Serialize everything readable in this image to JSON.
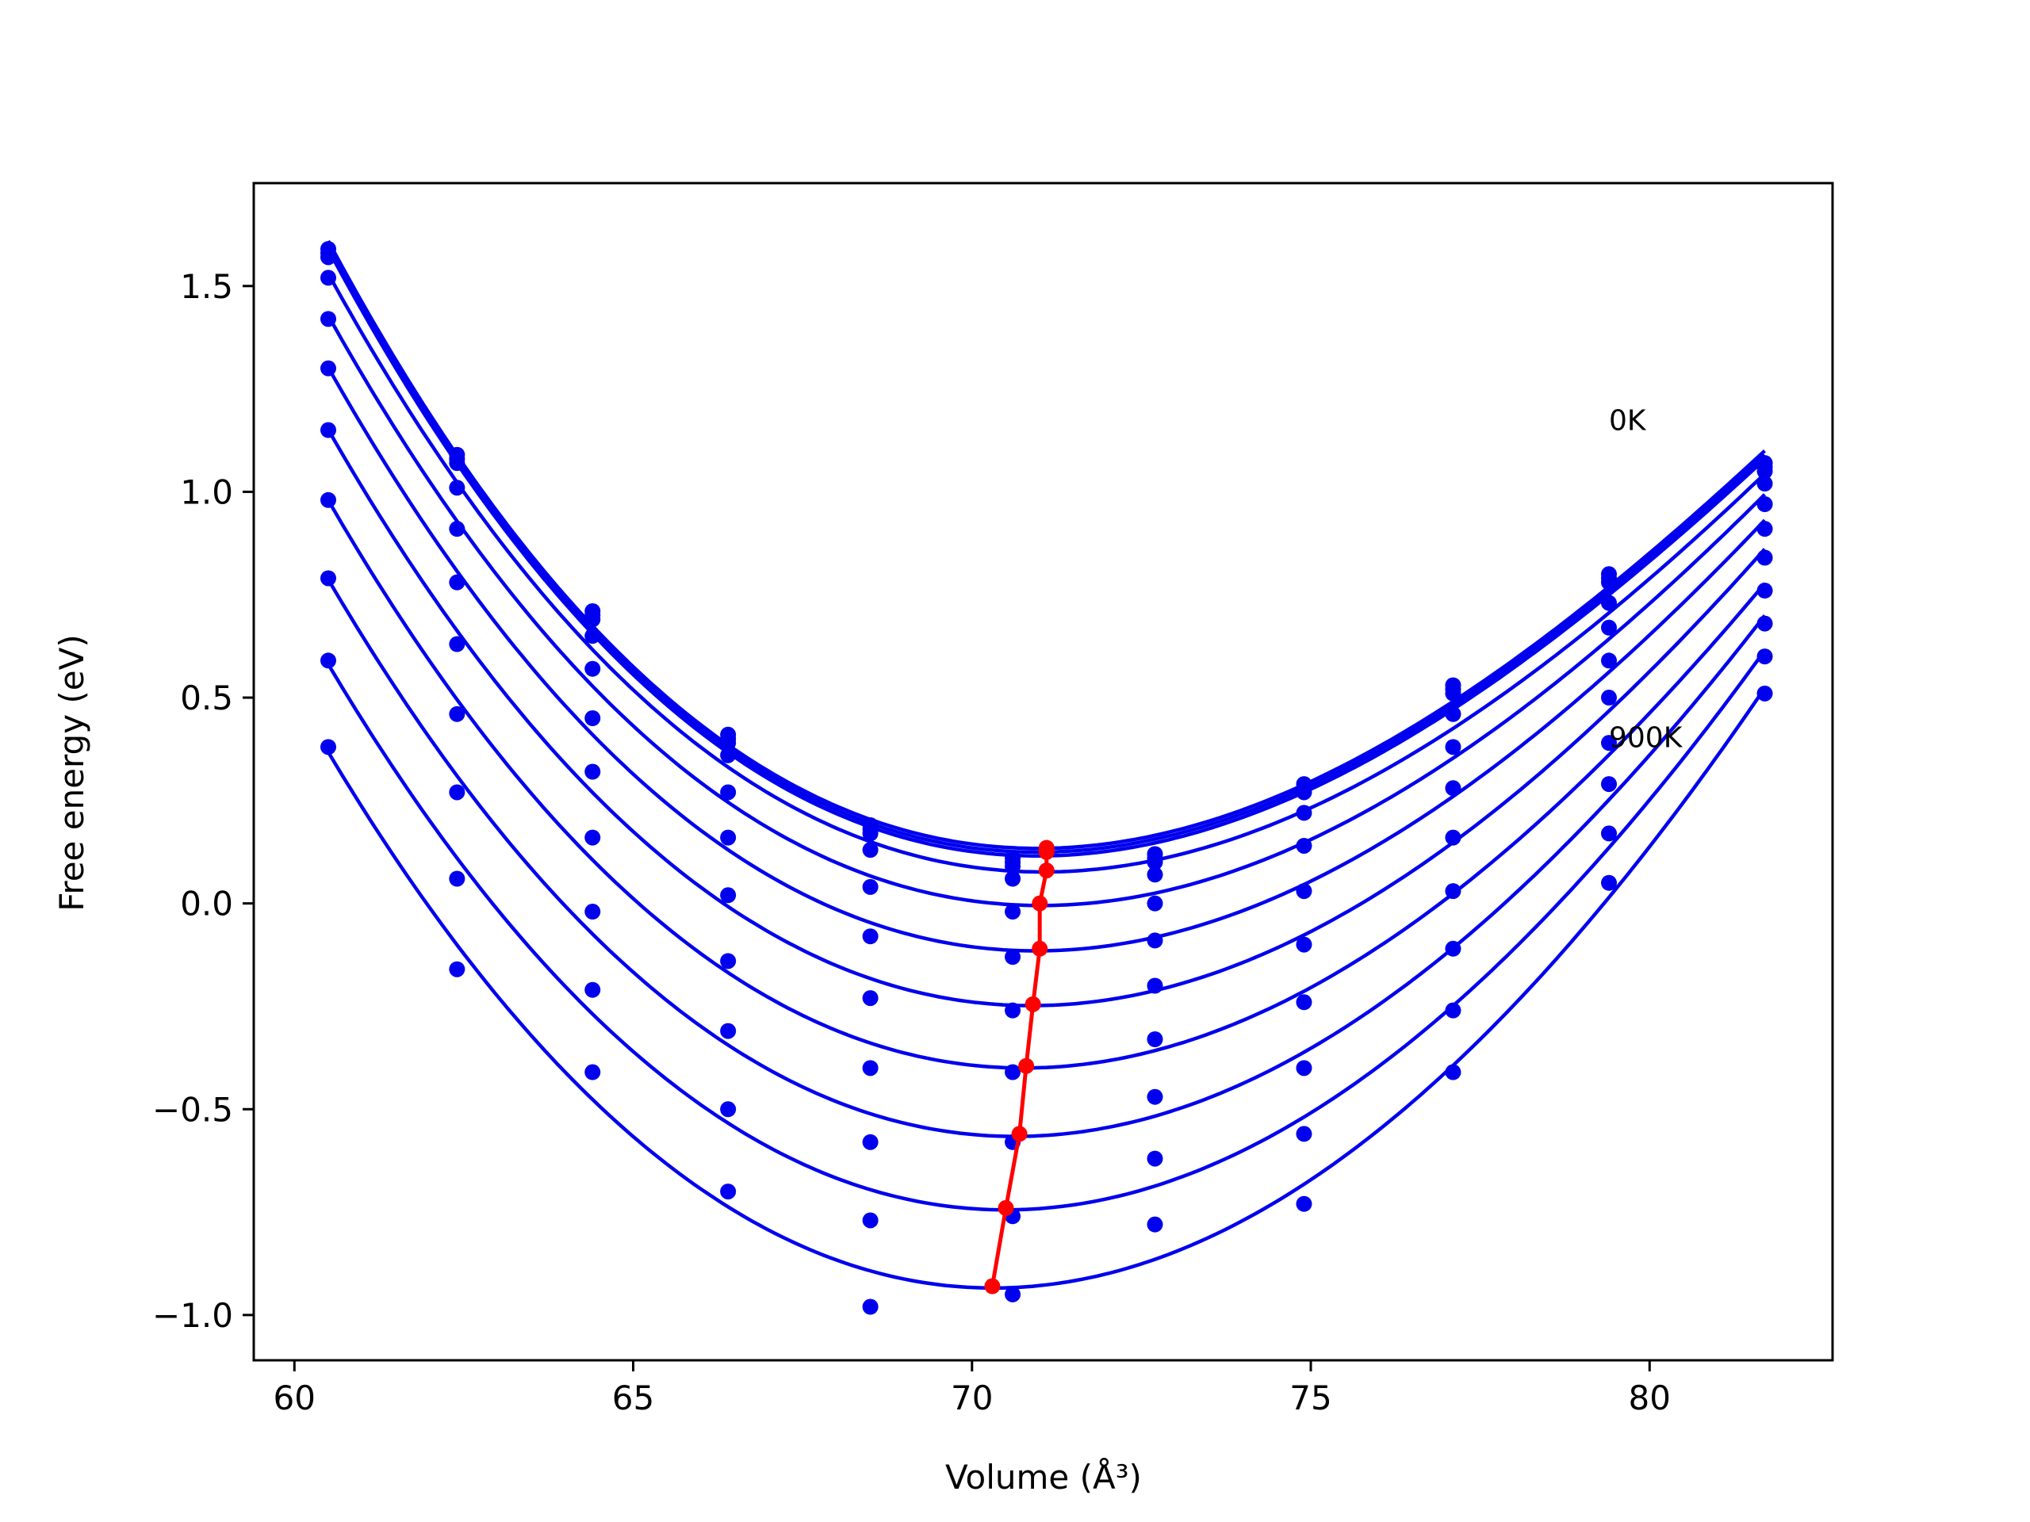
{
  "chart_data": {
    "type": "line",
    "title": "",
    "xlabel": "Volume (Å³)",
    "ylabel": "Free energy (eV)",
    "xlim": [
      59.4,
      82.7
    ],
    "ylim": [
      -1.11,
      1.75
    ],
    "xticks": [
      60,
      65,
      70,
      75,
      80
    ],
    "yticks": [
      -1.0,
      -0.5,
      0.0,
      0.5,
      1.0,
      1.5
    ],
    "xtick_labels": [
      "60",
      "65",
      "70",
      "75",
      "80"
    ],
    "ytick_labels": [
      "−1.0",
      "−0.5",
      "0.0",
      "0.5",
      "1.0",
      "1.5"
    ],
    "grid": false,
    "annotations": [
      {
        "text": "0K",
        "x": 79.4,
        "y": 1.15
      },
      {
        "text": "900K",
        "x": 79.4,
        "y": 0.38
      }
    ],
    "colors": {
      "fit_curves": "#0000ee",
      "data_points": "#0000ee",
      "minimum_line": "#ff0000"
    },
    "x_points": [
      60.5,
      62.4,
      64.4,
      66.4,
      68.5,
      70.6,
      72.7,
      74.9,
      77.1,
      79.4,
      81.7
    ],
    "fit_x_range": [
      60.5,
      81.7
    ],
    "series": [
      {
        "values": [
          1.59,
          1.09,
          0.71,
          0.41,
          0.19,
          0.11,
          0.12,
          0.29,
          0.53,
          0.8,
          1.07
        ],
        "minimum": {
          "x": 71.1,
          "y": 0.135
        }
      },
      {
        "values": [
          1.58,
          1.08,
          0.7,
          0.4,
          0.18,
          0.1,
          0.11,
          0.28,
          0.52,
          0.79,
          1.06
        ],
        "minimum": {
          "x": 71.1,
          "y": 0.13
        }
      },
      {
        "values": [
          1.57,
          1.07,
          0.69,
          0.39,
          0.17,
          0.09,
          0.1,
          0.27,
          0.51,
          0.78,
          1.05
        ],
        "minimum": {
          "x": 71.1,
          "y": 0.125
        }
      },
      {
        "values": [
          1.52,
          1.01,
          0.65,
          0.36,
          0.13,
          0.06,
          0.07,
          0.22,
          0.46,
          0.73,
          1.02
        ],
        "minimum": {
          "x": 71.1,
          "y": 0.08
        }
      },
      {
        "values": [
          1.42,
          0.91,
          0.57,
          0.27,
          0.04,
          -0.02,
          0.0,
          0.14,
          0.38,
          0.67,
          0.97
        ],
        "minimum": {
          "x": 71.0,
          "y": 0.0
        }
      },
      {
        "values": [
          1.3,
          0.78,
          0.45,
          0.16,
          -0.08,
          -0.13,
          -0.09,
          0.03,
          0.28,
          0.59,
          0.91
        ],
        "minimum": {
          "x": 71.0,
          "y": -0.11
        }
      },
      {
        "values": [
          1.15,
          0.63,
          0.32,
          0.02,
          -0.23,
          -0.26,
          -0.2,
          -0.1,
          0.16,
          0.5,
          0.84
        ],
        "minimum": {
          "x": 70.9,
          "y": -0.245
        }
      },
      {
        "values": [
          0.98,
          0.46,
          0.16,
          -0.14,
          -0.4,
          -0.41,
          -0.33,
          -0.24,
          0.03,
          0.39,
          0.76
        ],
        "minimum": {
          "x": 70.8,
          "y": -0.395
        }
      },
      {
        "values": [
          0.79,
          0.27,
          -0.02,
          -0.31,
          -0.58,
          -0.58,
          -0.47,
          -0.4,
          -0.11,
          0.29,
          0.68
        ],
        "minimum": {
          "x": 70.7,
          "y": -0.56
        }
      },
      {
        "values": [
          0.59,
          0.06,
          -0.21,
          -0.5,
          -0.77,
          -0.76,
          -0.62,
          -0.56,
          -0.26,
          0.17,
          0.6
        ],
        "minimum": {
          "x": 70.5,
          "y": -0.74
        }
      },
      {
        "values": [
          0.38,
          -0.16,
          -0.41,
          -0.7,
          -0.98,
          -0.95,
          -0.78,
          -0.73,
          -0.41,
          0.05,
          0.51
        ],
        "minimum": {
          "x": 70.3,
          "y": -0.93
        }
      }
    ]
  }
}
